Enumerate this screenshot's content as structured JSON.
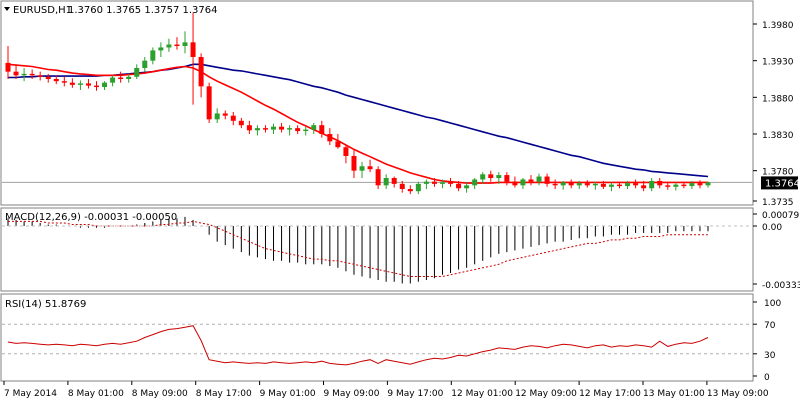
{
  "chart_data": [
    {
      "type": "candlestick",
      "title": "EURUSD,H1  1.3760 1.3765 1.3757 1.3764",
      "symbol_label": "EURUSD,H1",
      "ohlc_label": "1.3760 1.3765 1.3757 1.3764",
      "ylim": [
        1.3735,
        1.4
      ],
      "yticks": [
        "1.3980",
        "1.3930",
        "1.3880",
        "1.3830",
        "1.3780",
        "1.3735"
      ],
      "price_tag": "1.3764",
      "last_price": 1.3764,
      "candle_up_color": "#2ca02c",
      "candle_down_color": "#ff0000",
      "ma_fast_color": "#ff0000",
      "ma_slow_color": "#00008b",
      "x_labels": [
        "7 May 2014",
        "8 May 01:00",
        "8 May 09:00",
        "8 May 17:00",
        "9 May 01:00",
        "9 May 09:00",
        "9 May 17:00",
        "12 May 01:00",
        "12 May 09:00",
        "12 May 17:00",
        "13 May 01:00",
        "13 May 09:00"
      ],
      "candles": [
        {
          "o": 1.3927,
          "h": 1.395,
          "l": 1.3905,
          "c": 1.3915
        },
        {
          "o": 1.3915,
          "h": 1.3925,
          "l": 1.3905,
          "c": 1.391
        },
        {
          "o": 1.391,
          "h": 1.392,
          "l": 1.3902,
          "c": 1.3912
        },
        {
          "o": 1.3912,
          "h": 1.3918,
          "l": 1.3905,
          "c": 1.391
        },
        {
          "o": 1.391,
          "h": 1.3915,
          "l": 1.3903,
          "c": 1.3908
        },
        {
          "o": 1.3908,
          "h": 1.3912,
          "l": 1.39,
          "c": 1.3905
        },
        {
          "o": 1.3905,
          "h": 1.391,
          "l": 1.3898,
          "c": 1.3902
        },
        {
          "o": 1.3902,
          "h": 1.3908,
          "l": 1.3895,
          "c": 1.39
        },
        {
          "o": 1.39,
          "h": 1.3906,
          "l": 1.3893,
          "c": 1.3897
        },
        {
          "o": 1.3897,
          "h": 1.3903,
          "l": 1.389,
          "c": 1.3899
        },
        {
          "o": 1.3899,
          "h": 1.3905,
          "l": 1.3892,
          "c": 1.3896
        },
        {
          "o": 1.3896,
          "h": 1.3902,
          "l": 1.3889,
          "c": 1.3894
        },
        {
          "o": 1.3894,
          "h": 1.3902,
          "l": 1.389,
          "c": 1.39
        },
        {
          "o": 1.39,
          "h": 1.391,
          "l": 1.3895,
          "c": 1.3907
        },
        {
          "o": 1.3907,
          "h": 1.3915,
          "l": 1.39,
          "c": 1.3905
        },
        {
          "o": 1.3905,
          "h": 1.3912,
          "l": 1.39,
          "c": 1.3908
        },
        {
          "o": 1.3908,
          "h": 1.3925,
          "l": 1.3905,
          "c": 1.392
        },
        {
          "o": 1.392,
          "h": 1.3935,
          "l": 1.3915,
          "c": 1.393
        },
        {
          "o": 1.393,
          "h": 1.3948,
          "l": 1.3925,
          "c": 1.3944
        },
        {
          "o": 1.3944,
          "h": 1.3955,
          "l": 1.3935,
          "c": 1.3948
        },
        {
          "o": 1.3948,
          "h": 1.396,
          "l": 1.3942,
          "c": 1.3952
        },
        {
          "o": 1.3952,
          "h": 1.3962,
          "l": 1.3945,
          "c": 1.395
        },
        {
          "o": 1.395,
          "h": 1.397,
          "l": 1.394,
          "c": 1.3955
        },
        {
          "o": 1.3955,
          "h": 1.3995,
          "l": 1.387,
          "c": 1.3935
        },
        {
          "o": 1.3935,
          "h": 1.394,
          "l": 1.388,
          "c": 1.3895
        },
        {
          "o": 1.3895,
          "h": 1.39,
          "l": 1.3845,
          "c": 1.385
        },
        {
          "o": 1.385,
          "h": 1.3865,
          "l": 1.3845,
          "c": 1.3858
        },
        {
          "o": 1.3858,
          "h": 1.3862,
          "l": 1.385,
          "c": 1.3855
        },
        {
          "o": 1.3855,
          "h": 1.386,
          "l": 1.3842,
          "c": 1.3848
        },
        {
          "o": 1.3848,
          "h": 1.3852,
          "l": 1.3838,
          "c": 1.3842
        },
        {
          "o": 1.3842,
          "h": 1.3848,
          "l": 1.383,
          "c": 1.3835
        },
        {
          "o": 1.3835,
          "h": 1.3842,
          "l": 1.3828,
          "c": 1.3838
        },
        {
          "o": 1.3838,
          "h": 1.3842,
          "l": 1.3832,
          "c": 1.3836
        },
        {
          "o": 1.3836,
          "h": 1.3844,
          "l": 1.383,
          "c": 1.384
        },
        {
          "o": 1.384,
          "h": 1.3845,
          "l": 1.3832,
          "c": 1.3836
        },
        {
          "o": 1.3836,
          "h": 1.3842,
          "l": 1.3828,
          "c": 1.3838
        },
        {
          "o": 1.3838,
          "h": 1.3842,
          "l": 1.383,
          "c": 1.3834
        },
        {
          "o": 1.3834,
          "h": 1.384,
          "l": 1.3828,
          "c": 1.3836
        },
        {
          "o": 1.3836,
          "h": 1.3845,
          "l": 1.383,
          "c": 1.3842
        },
        {
          "o": 1.3842,
          "h": 1.3848,
          "l": 1.3825,
          "c": 1.383
        },
        {
          "o": 1.383,
          "h": 1.3838,
          "l": 1.3815,
          "c": 1.382
        },
        {
          "o": 1.382,
          "h": 1.383,
          "l": 1.381,
          "c": 1.3812
        },
        {
          "o": 1.3812,
          "h": 1.3815,
          "l": 1.379,
          "c": 1.38
        },
        {
          "o": 1.38,
          "h": 1.3808,
          "l": 1.377,
          "c": 1.378
        },
        {
          "o": 1.378,
          "h": 1.3792,
          "l": 1.377,
          "c": 1.3786
        },
        {
          "o": 1.3786,
          "h": 1.3795,
          "l": 1.3778,
          "c": 1.3782
        },
        {
          "o": 1.3782,
          "h": 1.3786,
          "l": 1.3755,
          "c": 1.376
        },
        {
          "o": 1.376,
          "h": 1.3775,
          "l": 1.3755,
          "c": 1.377
        },
        {
          "o": 1.377,
          "h": 1.3772,
          "l": 1.3757,
          "c": 1.3762
        },
        {
          "o": 1.3762,
          "h": 1.3766,
          "l": 1.375,
          "c": 1.3755
        },
        {
          "o": 1.3755,
          "h": 1.376,
          "l": 1.3748,
          "c": 1.3752
        },
        {
          "o": 1.3752,
          "h": 1.3765,
          "l": 1.3748,
          "c": 1.3762
        },
        {
          "o": 1.3762,
          "h": 1.3768,
          "l": 1.3755,
          "c": 1.3765
        },
        {
          "o": 1.3765,
          "h": 1.377,
          "l": 1.3758,
          "c": 1.3762
        },
        {
          "o": 1.3762,
          "h": 1.3768,
          "l": 1.3756,
          "c": 1.3764
        },
        {
          "o": 1.3764,
          "h": 1.377,
          "l": 1.3758,
          "c": 1.3762
        },
        {
          "o": 1.3762,
          "h": 1.3766,
          "l": 1.3752,
          "c": 1.3756
        },
        {
          "o": 1.3756,
          "h": 1.3764,
          "l": 1.375,
          "c": 1.376
        },
        {
          "o": 1.376,
          "h": 1.377,
          "l": 1.3755,
          "c": 1.3768
        },
        {
          "o": 1.3768,
          "h": 1.3778,
          "l": 1.3762,
          "c": 1.3775
        },
        {
          "o": 1.3775,
          "h": 1.378,
          "l": 1.3765,
          "c": 1.377
        },
        {
          "o": 1.377,
          "h": 1.3778,
          "l": 1.3762,
          "c": 1.3774
        },
        {
          "o": 1.3774,
          "h": 1.3778,
          "l": 1.376,
          "c": 1.3765
        },
        {
          "o": 1.3765,
          "h": 1.3772,
          "l": 1.3757,
          "c": 1.376
        },
        {
          "o": 1.376,
          "h": 1.377,
          "l": 1.3755,
          "c": 1.3768
        },
        {
          "o": 1.3768,
          "h": 1.3774,
          "l": 1.376,
          "c": 1.3765
        },
        {
          "o": 1.3765,
          "h": 1.3776,
          "l": 1.376,
          "c": 1.3772
        },
        {
          "o": 1.3772,
          "h": 1.3776,
          "l": 1.3758,
          "c": 1.3762
        },
        {
          "o": 1.3762,
          "h": 1.3768,
          "l": 1.3755,
          "c": 1.376
        },
        {
          "o": 1.376,
          "h": 1.3766,
          "l": 1.3754,
          "c": 1.3764
        },
        {
          "o": 1.3764,
          "h": 1.3768,
          "l": 1.3756,
          "c": 1.376
        },
        {
          "o": 1.376,
          "h": 1.3766,
          "l": 1.3755,
          "c": 1.3763
        },
        {
          "o": 1.3763,
          "h": 1.3767,
          "l": 1.3757,
          "c": 1.376
        },
        {
          "o": 1.376,
          "h": 1.3765,
          "l": 1.3754,
          "c": 1.3762
        },
        {
          "o": 1.3762,
          "h": 1.3766,
          "l": 1.3755,
          "c": 1.3758
        },
        {
          "o": 1.3758,
          "h": 1.3764,
          "l": 1.3752,
          "c": 1.3761
        },
        {
          "o": 1.3761,
          "h": 1.3765,
          "l": 1.3756,
          "c": 1.3759
        },
        {
          "o": 1.3759,
          "h": 1.3766,
          "l": 1.3755,
          "c": 1.3763
        },
        {
          "o": 1.3763,
          "h": 1.3768,
          "l": 1.3756,
          "c": 1.376
        },
        {
          "o": 1.376,
          "h": 1.3766,
          "l": 1.3752,
          "c": 1.3756
        },
        {
          "o": 1.3756,
          "h": 1.377,
          "l": 1.3752,
          "c": 1.3766
        },
        {
          "o": 1.3766,
          "h": 1.377,
          "l": 1.3756,
          "c": 1.376
        },
        {
          "o": 1.376,
          "h": 1.3765,
          "l": 1.3754,
          "c": 1.3758
        },
        {
          "o": 1.3758,
          "h": 1.3764,
          "l": 1.3753,
          "c": 1.3761
        },
        {
          "o": 1.3761,
          "h": 1.3765,
          "l": 1.3756,
          "c": 1.3759
        },
        {
          "o": 1.3759,
          "h": 1.3766,
          "l": 1.3755,
          "c": 1.3763
        },
        {
          "o": 1.3763,
          "h": 1.3767,
          "l": 1.3756,
          "c": 1.376
        },
        {
          "o": 1.376,
          "h": 1.3765,
          "l": 1.3757,
          "c": 1.3764
        }
      ],
      "ma_fast": [
        1.3925,
        1.3924,
        1.3923,
        1.3922,
        1.392,
        1.3918,
        1.3917,
        1.3915,
        1.3913,
        1.3912,
        1.3911,
        1.391,
        1.391,
        1.391,
        1.391,
        1.3911,
        1.3912,
        1.3913,
        1.3915,
        1.3917,
        1.3919,
        1.3921,
        1.3922,
        1.392,
        1.3915,
        1.3908,
        1.3902,
        1.3897,
        1.3892,
        1.3887,
        1.3881,
        1.3875,
        1.3869,
        1.3864,
        1.3858,
        1.3852,
        1.3846,
        1.3841,
        1.3836,
        1.3831,
        1.3826,
        1.3821,
        1.3815,
        1.3809,
        1.3804,
        1.3799,
        1.3794,
        1.3789,
        1.3785,
        1.3781,
        1.3777,
        1.3774,
        1.3771,
        1.3768,
        1.3766,
        1.3765,
        1.3764,
        1.3763,
        1.3763,
        1.3763,
        1.3763,
        1.3764,
        1.3764,
        1.3764,
        1.3764,
        1.3764,
        1.3764,
        1.3764,
        1.3764,
        1.3764,
        1.3764,
        1.3764,
        1.3764,
        1.3764,
        1.3764,
        1.3764,
        1.3764,
        1.3764,
        1.3764,
        1.3764,
        1.3764,
        1.3764,
        1.3764,
        1.3764,
        1.3764,
        1.3764,
        1.3764,
        1.3764
      ],
      "ma_slow": [
        1.3907,
        1.3907,
        1.3908,
        1.3908,
        1.3909,
        1.3909,
        1.3909,
        1.3909,
        1.3909,
        1.3909,
        1.3909,
        1.3909,
        1.391,
        1.391,
        1.3911,
        1.3912,
        1.3913,
        1.3914,
        1.3915,
        1.3917,
        1.3918,
        1.392,
        1.3922,
        1.3925,
        1.3925,
        1.3923,
        1.3921,
        1.3919,
        1.3917,
        1.3916,
        1.3914,
        1.3912,
        1.391,
        1.3908,
        1.3906,
        1.3904,
        1.3901,
        1.3898,
        1.3895,
        1.3893,
        1.389,
        1.3887,
        1.3883,
        1.388,
        1.3877,
        1.3874,
        1.3871,
        1.3868,
        1.3865,
        1.3862,
        1.3859,
        1.3856,
        1.3853,
        1.3851,
        1.3848,
        1.3845,
        1.3842,
        1.3839,
        1.3836,
        1.3833,
        1.383,
        1.3827,
        1.3825,
        1.3822,
        1.3819,
        1.3816,
        1.3813,
        1.381,
        1.3807,
        1.3804,
        1.3801,
        1.3799,
        1.3796,
        1.3793,
        1.379,
        1.3788,
        1.3786,
        1.3784,
        1.3782,
        1.3781,
        1.3779,
        1.3778,
        1.3777,
        1.3776,
        1.3775,
        1.3774,
        1.3773,
        1.3772
      ]
    },
    {
      "type": "bar",
      "title": "MACD(12,26,9) -0.00031 -0.00050",
      "label": "MACD(12,26,9) -0.00031 -0.00050",
      "ylim": [
        -0.0036,
        0.001
      ],
      "yticks": [
        "0.00079",
        "0.00",
        "-0.00333"
      ],
      "bar_color": "#000000",
      "signal_color": "#cc0000",
      "histogram": [
        0.0005,
        0.0004,
        0.0003,
        0.0003,
        0.0002,
        0.0001,
        0.0001,
        0.0,
        0.0,
        -0.0001,
        -0.0001,
        -0.0001,
        -0.0001,
        0.0,
        0.0,
        0.0,
        0.0001,
        0.0002,
        0.0003,
        0.0004,
        0.0005,
        0.0005,
        0.0006,
        0.0004,
        0.0,
        -0.0005,
        -0.0009,
        -0.0011,
        -0.0013,
        -0.0015,
        -0.0017,
        -0.0018,
        -0.0019,
        -0.002,
        -0.002,
        -0.0021,
        -0.0021,
        -0.0022,
        -0.0022,
        -0.0022,
        -0.0023,
        -0.0024,
        -0.0026,
        -0.0028,
        -0.0029,
        -0.003,
        -0.0031,
        -0.0032,
        -0.0032,
        -0.0033,
        -0.0033,
        -0.0032,
        -0.0031,
        -0.003,
        -0.0028,
        -0.0027,
        -0.0025,
        -0.0024,
        -0.0022,
        -0.002,
        -0.0018,
        -0.0016,
        -0.0015,
        -0.0014,
        -0.0013,
        -0.0012,
        -0.0011,
        -0.001,
        -0.0009,
        -0.0009,
        -0.0008,
        -0.0007,
        -0.0007,
        -0.0006,
        -0.0006,
        -0.0005,
        -0.0005,
        -0.0005,
        -0.0004,
        -0.0004,
        -0.0004,
        -0.0004,
        -0.0004,
        -0.0003,
        -0.0003,
        -0.0003,
        -0.0003,
        -0.0003
      ],
      "signal": [
        0.0003,
        0.0003,
        0.0003,
        0.0003,
        0.0003,
        0.0002,
        0.0002,
        0.0002,
        0.0001,
        0.0001,
        0.0001,
        0.0,
        0.0,
        0.0,
        0.0,
        0.0,
        0.0,
        0.0,
        0.0,
        0.0001,
        0.0001,
        0.0002,
        0.0002,
        0.0003,
        0.0002,
        0.0001,
        -0.0001,
        -0.0003,
        -0.0005,
        -0.0007,
        -0.0009,
        -0.0011,
        -0.0013,
        -0.0014,
        -0.0015,
        -0.0016,
        -0.0017,
        -0.0018,
        -0.0019,
        -0.0019,
        -0.002,
        -0.002,
        -0.0021,
        -0.0022,
        -0.0023,
        -0.0024,
        -0.0025,
        -0.0026,
        -0.0027,
        -0.0028,
        -0.0029,
        -0.0029,
        -0.0029,
        -0.0029,
        -0.0029,
        -0.0028,
        -0.0027,
        -0.0026,
        -0.0025,
        -0.0024,
        -0.0023,
        -0.0022,
        -0.002,
        -0.0019,
        -0.0018,
        -0.0017,
        -0.0016,
        -0.0015,
        -0.0014,
        -0.0013,
        -0.0012,
        -0.0011,
        -0.001,
        -0.001,
        -0.0009,
        -0.0008,
        -0.0008,
        -0.0007,
        -0.0007,
        -0.0006,
        -0.0006,
        -0.0006,
        -0.0005,
        -0.0005,
        -0.0005,
        -0.0005,
        -0.0005,
        -0.0005
      ]
    },
    {
      "type": "line",
      "title": "RSI(14) 51.8769",
      "label": "RSI(14) 51.8769",
      "ylim": [
        0,
        100
      ],
      "yticks": [
        "100",
        "70",
        "30",
        "0"
      ],
      "levels": [
        70,
        30
      ],
      "line_color": "#cc0000",
      "values": [
        46,
        44,
        45,
        44,
        43,
        42,
        43,
        42,
        41,
        43,
        42,
        41,
        43,
        44,
        43,
        45,
        47,
        52,
        56,
        60,
        63,
        64,
        66,
        68,
        48,
        22,
        20,
        18,
        19,
        18,
        17,
        18,
        17,
        19,
        18,
        17,
        18,
        19,
        18,
        20,
        17,
        16,
        15,
        17,
        20,
        22,
        17,
        22,
        20,
        18,
        16,
        19,
        22,
        24,
        23,
        25,
        28,
        27,
        30,
        33,
        35,
        38,
        37,
        36,
        39,
        41,
        40,
        38,
        41,
        43,
        42,
        40,
        38,
        41,
        42,
        39,
        41,
        40,
        42,
        41,
        39,
        47,
        40,
        43,
        45,
        44,
        47,
        52
      ]
    }
  ]
}
